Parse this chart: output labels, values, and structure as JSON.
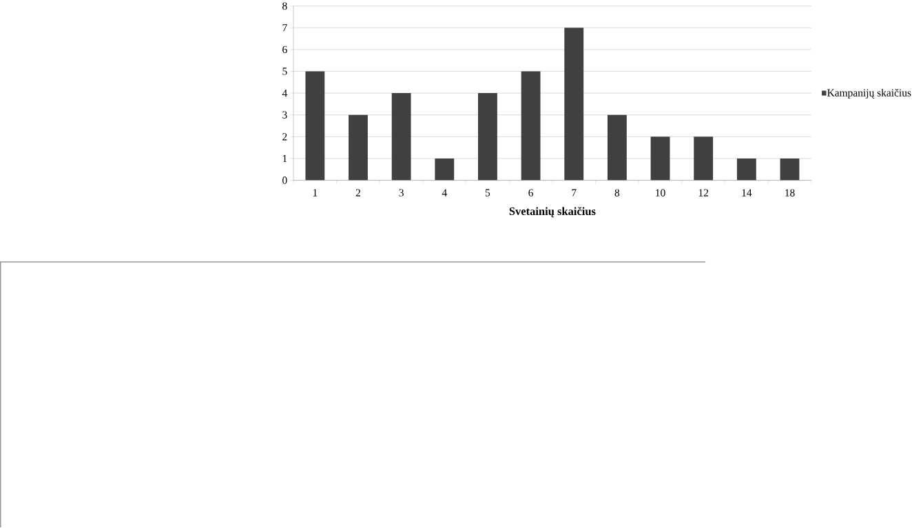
{
  "chart_data": {
    "type": "bar",
    "xlabel": "Svetainių skaičius",
    "categories": [
      "1",
      "2",
      "3",
      "4",
      "5",
      "6",
      "7",
      "8",
      "10",
      "12",
      "14",
      "18"
    ],
    "series": [
      {
        "name": "Kampanijų skaičius",
        "color": "#404040",
        "values": [
          5,
          3,
          4,
          1,
          4,
          5,
          7,
          3,
          2,
          2,
          1,
          1
        ]
      }
    ],
    "ylim": [
      0,
      8
    ],
    "yticks": [
      0,
      1,
      2,
      3,
      4,
      5,
      6,
      7,
      8
    ],
    "grid": "y",
    "legend": "right"
  }
}
